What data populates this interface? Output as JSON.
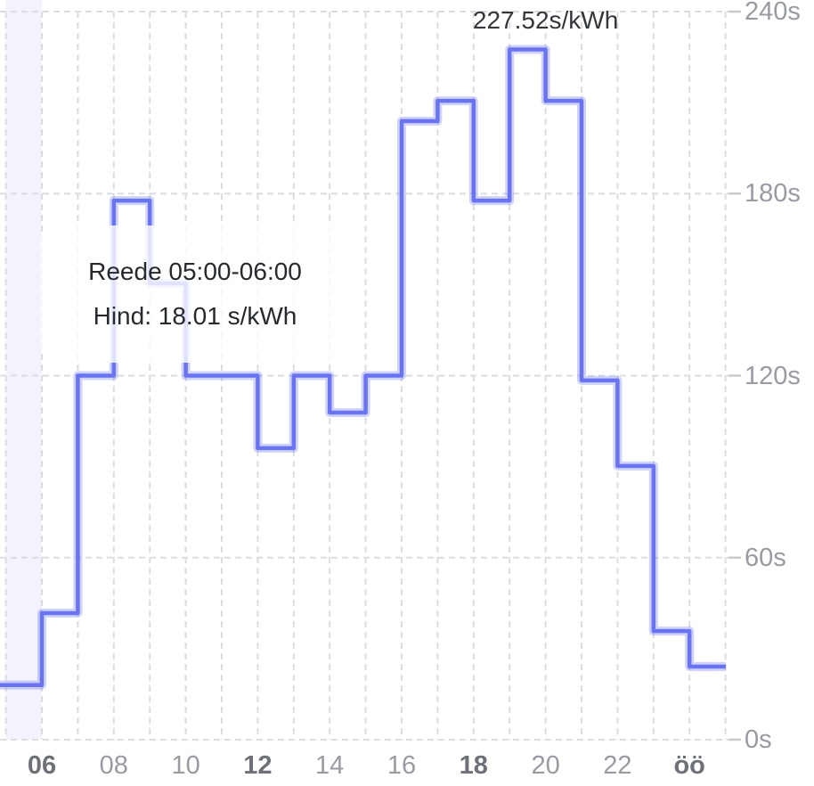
{
  "chart_data": {
    "type": "step-line",
    "unit": "s/kWh",
    "ylim": [
      0,
      240
    ],
    "x_hours": [
      5,
      25
    ],
    "grid": "dashed",
    "legend": "none",
    "y_ticks": [
      {
        "value": 240,
        "label": "240s"
      },
      {
        "value": 180,
        "label": "180s"
      },
      {
        "value": 120,
        "label": "120s"
      },
      {
        "value": 60,
        "label": "60s"
      },
      {
        "value": 0,
        "label": "0s"
      }
    ],
    "x_ticks": [
      {
        "hour": 6,
        "label": "06",
        "bold": true
      },
      {
        "hour": 8,
        "label": "08",
        "bold": false
      },
      {
        "hour": 10,
        "label": "10",
        "bold": false
      },
      {
        "hour": 12,
        "label": "12",
        "bold": true
      },
      {
        "hour": 14,
        "label": "14",
        "bold": false
      },
      {
        "hour": 16,
        "label": "16",
        "bold": false
      },
      {
        "hour": 18,
        "label": "18",
        "bold": true
      },
      {
        "hour": 20,
        "label": "20",
        "bold": false
      },
      {
        "hour": 22,
        "label": "22",
        "bold": false
      },
      {
        "hour": 24,
        "label": "öö",
        "bold": true
      }
    ],
    "series": [
      {
        "name": "electricity-price",
        "points": [
          {
            "from": "05:00",
            "to": "06:00",
            "value": 18.01
          },
          {
            "from": "06:00",
            "to": "07:00",
            "value": 41.7
          },
          {
            "from": "07:00",
            "to": "08:00",
            "value": 120.0
          },
          {
            "from": "08:00",
            "to": "09:00",
            "value": 177.7
          },
          {
            "from": "09:00",
            "to": "10:00",
            "value": 150.4
          },
          {
            "from": "10:00",
            "to": "11:00",
            "value": 120.0
          },
          {
            "from": "11:00",
            "to": "12:00",
            "value": 120.0
          },
          {
            "from": "12:00",
            "to": "13:00",
            "value": 96.1
          },
          {
            "from": "13:00",
            "to": "14:00",
            "value": 120.0
          },
          {
            "from": "14:00",
            "to": "15:00",
            "value": 107.8
          },
          {
            "from": "15:00",
            "to": "16:00",
            "value": 120.0
          },
          {
            "from": "16:00",
            "to": "17:00",
            "value": 203.9
          },
          {
            "from": "17:00",
            "to": "18:00",
            "value": 210.6
          },
          {
            "from": "18:00",
            "to": "19:00",
            "value": 177.7
          },
          {
            "from": "19:00",
            "to": "20:00",
            "value": 227.52
          },
          {
            "from": "20:00",
            "to": "21:00",
            "value": 210.6
          },
          {
            "from": "21:00",
            "to": "22:00",
            "value": 118.4
          },
          {
            "from": "22:00",
            "to": "23:00",
            "value": 90.2
          },
          {
            "from": "23:00",
            "to": "24:00",
            "value": 35.8
          },
          {
            "from": "00:00",
            "to": "01:00",
            "value": 24.1
          }
        ]
      }
    ],
    "highlight": {
      "from_hour": 5,
      "to_hour": 6
    },
    "max_label": {
      "text": "227.52s/kWh",
      "at_hour": 20
    }
  },
  "tooltip": {
    "line1": "Reede 05:00-06:00",
    "line2": "Hind: 18.01 s/kWh"
  },
  "colors": {
    "line": "#6a74f0",
    "line_halo": "rgba(106,116,240,0.32)",
    "grid": "#dcdde1",
    "axis_tick": "#c7cacf",
    "band": "#f2f3fc",
    "axis_label": "#989ba2",
    "axis_label_bold": "#6e7278",
    "text_dark": "#26292e"
  }
}
